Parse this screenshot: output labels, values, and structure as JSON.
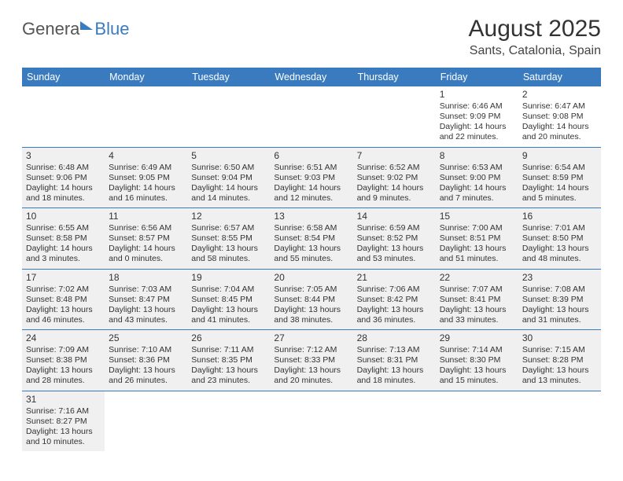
{
  "logo": {
    "textA": "Genera",
    "textB": "Blue"
  },
  "title": "August 2025",
  "location": "Sants, Catalonia, Spain",
  "dayNames": [
    "Sunday",
    "Monday",
    "Tuesday",
    "Wednesday",
    "Thursday",
    "Friday",
    "Saturday"
  ],
  "colors": {
    "brand": "#3a7bbf",
    "shade": "#f0f0f0",
    "text": "#333333"
  },
  "weeks": [
    [
      {
        "empty": true
      },
      {
        "empty": true
      },
      {
        "empty": true
      },
      {
        "empty": true
      },
      {
        "empty": true
      },
      {
        "day": "1",
        "sunrise": "Sunrise: 6:46 AM",
        "sunset": "Sunset: 9:09 PM",
        "daylight1": "Daylight: 14 hours",
        "daylight2": "and 22 minutes."
      },
      {
        "day": "2",
        "sunrise": "Sunrise: 6:47 AM",
        "sunset": "Sunset: 9:08 PM",
        "daylight1": "Daylight: 14 hours",
        "daylight2": "and 20 minutes."
      }
    ],
    [
      {
        "day": "3",
        "shade": true,
        "sunrise": "Sunrise: 6:48 AM",
        "sunset": "Sunset: 9:06 PM",
        "daylight1": "Daylight: 14 hours",
        "daylight2": "and 18 minutes."
      },
      {
        "day": "4",
        "shade": true,
        "sunrise": "Sunrise: 6:49 AM",
        "sunset": "Sunset: 9:05 PM",
        "daylight1": "Daylight: 14 hours",
        "daylight2": "and 16 minutes."
      },
      {
        "day": "5",
        "shade": true,
        "sunrise": "Sunrise: 6:50 AM",
        "sunset": "Sunset: 9:04 PM",
        "daylight1": "Daylight: 14 hours",
        "daylight2": "and 14 minutes."
      },
      {
        "day": "6",
        "shade": true,
        "sunrise": "Sunrise: 6:51 AM",
        "sunset": "Sunset: 9:03 PM",
        "daylight1": "Daylight: 14 hours",
        "daylight2": "and 12 minutes."
      },
      {
        "day": "7",
        "shade": true,
        "sunrise": "Sunrise: 6:52 AM",
        "sunset": "Sunset: 9:02 PM",
        "daylight1": "Daylight: 14 hours",
        "daylight2": "and 9 minutes."
      },
      {
        "day": "8",
        "shade": true,
        "sunrise": "Sunrise: 6:53 AM",
        "sunset": "Sunset: 9:00 PM",
        "daylight1": "Daylight: 14 hours",
        "daylight2": "and 7 minutes."
      },
      {
        "day": "9",
        "shade": true,
        "sunrise": "Sunrise: 6:54 AM",
        "sunset": "Sunset: 8:59 PM",
        "daylight1": "Daylight: 14 hours",
        "daylight2": "and 5 minutes."
      }
    ],
    [
      {
        "day": "10",
        "shade": true,
        "sunrise": "Sunrise: 6:55 AM",
        "sunset": "Sunset: 8:58 PM",
        "daylight1": "Daylight: 14 hours",
        "daylight2": "and 3 minutes."
      },
      {
        "day": "11",
        "shade": true,
        "sunrise": "Sunrise: 6:56 AM",
        "sunset": "Sunset: 8:57 PM",
        "daylight1": "Daylight: 14 hours",
        "daylight2": "and 0 minutes."
      },
      {
        "day": "12",
        "shade": true,
        "sunrise": "Sunrise: 6:57 AM",
        "sunset": "Sunset: 8:55 PM",
        "daylight1": "Daylight: 13 hours",
        "daylight2": "and 58 minutes."
      },
      {
        "day": "13",
        "shade": true,
        "sunrise": "Sunrise: 6:58 AM",
        "sunset": "Sunset: 8:54 PM",
        "daylight1": "Daylight: 13 hours",
        "daylight2": "and 55 minutes."
      },
      {
        "day": "14",
        "shade": true,
        "sunrise": "Sunrise: 6:59 AM",
        "sunset": "Sunset: 8:52 PM",
        "daylight1": "Daylight: 13 hours",
        "daylight2": "and 53 minutes."
      },
      {
        "day": "15",
        "shade": true,
        "sunrise": "Sunrise: 7:00 AM",
        "sunset": "Sunset: 8:51 PM",
        "daylight1": "Daylight: 13 hours",
        "daylight2": "and 51 minutes."
      },
      {
        "day": "16",
        "shade": true,
        "sunrise": "Sunrise: 7:01 AM",
        "sunset": "Sunset: 8:50 PM",
        "daylight1": "Daylight: 13 hours",
        "daylight2": "and 48 minutes."
      }
    ],
    [
      {
        "day": "17",
        "shade": true,
        "sunrise": "Sunrise: 7:02 AM",
        "sunset": "Sunset: 8:48 PM",
        "daylight1": "Daylight: 13 hours",
        "daylight2": "and 46 minutes."
      },
      {
        "day": "18",
        "shade": true,
        "sunrise": "Sunrise: 7:03 AM",
        "sunset": "Sunset: 8:47 PM",
        "daylight1": "Daylight: 13 hours",
        "daylight2": "and 43 minutes."
      },
      {
        "day": "19",
        "shade": true,
        "sunrise": "Sunrise: 7:04 AM",
        "sunset": "Sunset: 8:45 PM",
        "daylight1": "Daylight: 13 hours",
        "daylight2": "and 41 minutes."
      },
      {
        "day": "20",
        "shade": true,
        "sunrise": "Sunrise: 7:05 AM",
        "sunset": "Sunset: 8:44 PM",
        "daylight1": "Daylight: 13 hours",
        "daylight2": "and 38 minutes."
      },
      {
        "day": "21",
        "shade": true,
        "sunrise": "Sunrise: 7:06 AM",
        "sunset": "Sunset: 8:42 PM",
        "daylight1": "Daylight: 13 hours",
        "daylight2": "and 36 minutes."
      },
      {
        "day": "22",
        "shade": true,
        "sunrise": "Sunrise: 7:07 AM",
        "sunset": "Sunset: 8:41 PM",
        "daylight1": "Daylight: 13 hours",
        "daylight2": "and 33 minutes."
      },
      {
        "day": "23",
        "shade": true,
        "sunrise": "Sunrise: 7:08 AM",
        "sunset": "Sunset: 8:39 PM",
        "daylight1": "Daylight: 13 hours",
        "daylight2": "and 31 minutes."
      }
    ],
    [
      {
        "day": "24",
        "shade": true,
        "sunrise": "Sunrise: 7:09 AM",
        "sunset": "Sunset: 8:38 PM",
        "daylight1": "Daylight: 13 hours",
        "daylight2": "and 28 minutes."
      },
      {
        "day": "25",
        "shade": true,
        "sunrise": "Sunrise: 7:10 AM",
        "sunset": "Sunset: 8:36 PM",
        "daylight1": "Daylight: 13 hours",
        "daylight2": "and 26 minutes."
      },
      {
        "day": "26",
        "shade": true,
        "sunrise": "Sunrise: 7:11 AM",
        "sunset": "Sunset: 8:35 PM",
        "daylight1": "Daylight: 13 hours",
        "daylight2": "and 23 minutes."
      },
      {
        "day": "27",
        "shade": true,
        "sunrise": "Sunrise: 7:12 AM",
        "sunset": "Sunset: 8:33 PM",
        "daylight1": "Daylight: 13 hours",
        "daylight2": "and 20 minutes."
      },
      {
        "day": "28",
        "shade": true,
        "sunrise": "Sunrise: 7:13 AM",
        "sunset": "Sunset: 8:31 PM",
        "daylight1": "Daylight: 13 hours",
        "daylight2": "and 18 minutes."
      },
      {
        "day": "29",
        "shade": true,
        "sunrise": "Sunrise: 7:14 AM",
        "sunset": "Sunset: 8:30 PM",
        "daylight1": "Daylight: 13 hours",
        "daylight2": "and 15 minutes."
      },
      {
        "day": "30",
        "shade": true,
        "sunrise": "Sunrise: 7:15 AM",
        "sunset": "Sunset: 8:28 PM",
        "daylight1": "Daylight: 13 hours",
        "daylight2": "and 13 minutes."
      }
    ],
    [
      {
        "day": "31",
        "shade": true,
        "sunrise": "Sunrise: 7:16 AM",
        "sunset": "Sunset: 8:27 PM",
        "daylight1": "Daylight: 13 hours",
        "daylight2": "and 10 minutes."
      },
      {
        "empty": true
      },
      {
        "empty": true
      },
      {
        "empty": true
      },
      {
        "empty": true
      },
      {
        "empty": true
      },
      {
        "empty": true
      }
    ]
  ]
}
